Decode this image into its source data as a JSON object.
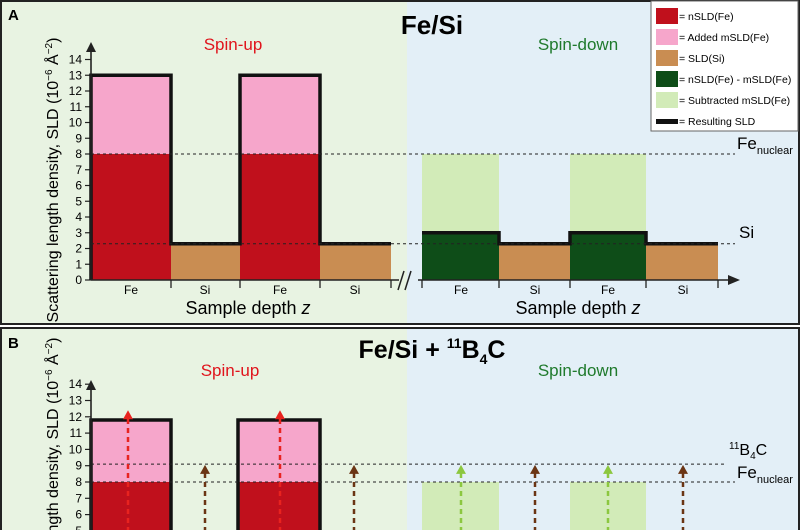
{
  "panel_a": {
    "label": "A",
    "title": "Fe/Si",
    "spin_up": "Spin-up",
    "spin_down": "Spin-down",
    "y_axis_label": "Scattering length density, SLD (10",
    "y_axis_exp": "−6",
    "y_axis_unit": " Å",
    "y_axis_unit_exp": "−2",
    "y_axis_close": ")",
    "y_ticks": [
      "0",
      "1",
      "2",
      "3",
      "4",
      "5",
      "6",
      "7",
      "8",
      "9",
      "10",
      "11",
      "12",
      "13",
      "14"
    ],
    "x_axis_label": "Sample depth ",
    "x_axis_var": "z",
    "layers_left": [
      "Fe",
      "Si",
      "Fe",
      "Si"
    ],
    "layers_right": [
      "Fe",
      "Si",
      "Fe",
      "Si"
    ],
    "fe_nuclear_main": "Fe",
    "fe_nuclear_sub": "nuclear",
    "si_label": "Si"
  },
  "panel_b": {
    "label": "B",
    "title_main": "Fe/Si + ",
    "title_sup": "11",
    "title_b": "B",
    "title_sub": "4",
    "title_c": "C",
    "spin_up": "Spin-up",
    "spin_down": "Spin-down",
    "y_axis_label": "ength density, SLD (10",
    "y_axis_exp": "−6",
    "y_axis_unit": " Å",
    "y_axis_unit_exp": "−2",
    "y_axis_close": ")",
    "y_ticks": [
      "5",
      "6",
      "7",
      "8",
      "9",
      "10",
      "11",
      "12",
      "13",
      "14"
    ],
    "b4c_sup": "11",
    "b4c_b": "B",
    "b4c_sub": "4",
    "b4c_c": "C",
    "fe_nuclear_main": "Fe",
    "fe_nuclear_sub": "nuclear"
  },
  "legend": [
    {
      "label": "= nSLD(Fe)",
      "color": "#c0101c"
    },
    {
      "label": "= Added mSLD(Fe)",
      "color": "#f6a6cb"
    },
    {
      "label": "= SLD(Si)",
      "color": "#c98d52"
    },
    {
      "label": "= nSLD(Fe) - mSLD(Fe)",
      "color": "#0e4d18"
    },
    {
      "label": "= Subtracted mSLD(Fe)",
      "color": "#d2ebb8"
    },
    {
      "label": "= Resulting SLD",
      "color": "#111111"
    }
  ],
  "sld_values": {
    "fe_nuclear": 8.0,
    "fe_magnetic_added": 5.0,
    "fe_spin_down": 3.0,
    "si": 2.3,
    "b4c_level": 9.1,
    "fe_up_b": 11.8
  }
}
